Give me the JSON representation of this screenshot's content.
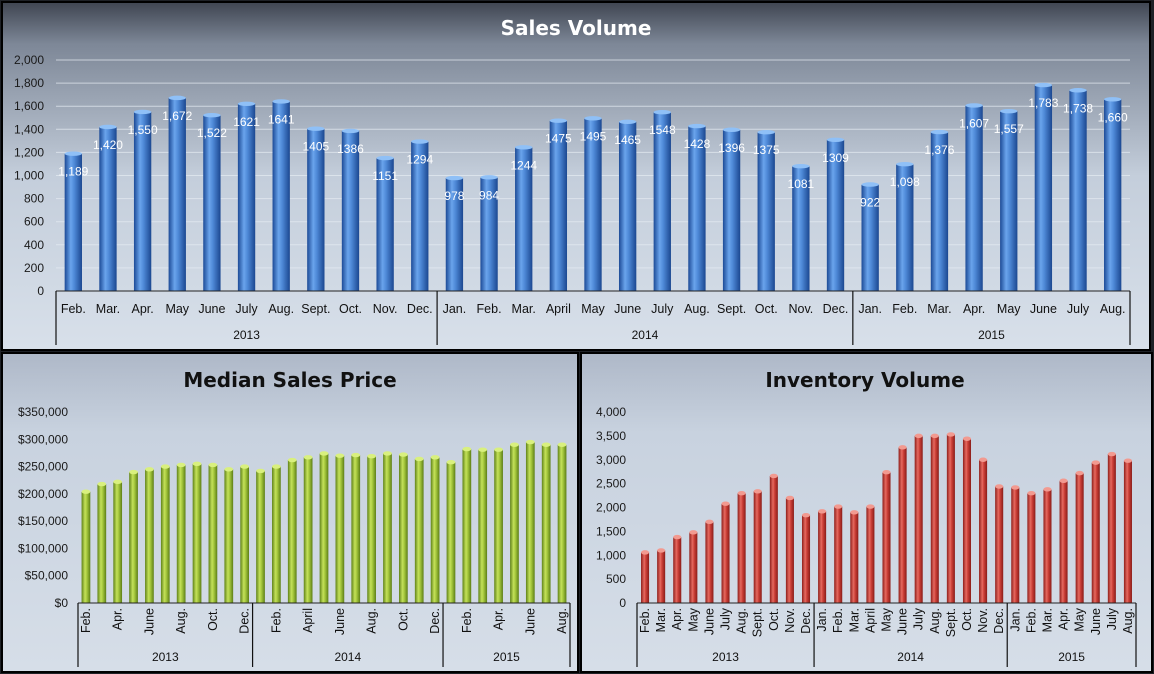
{
  "chart_data": [
    {
      "type": "bar",
      "title": "Sales Volume",
      "ylim": [
        0,
        2000
      ],
      "yticks": [
        "0",
        "200",
        "400",
        "600",
        "800",
        "1,000",
        "1,200",
        "1,400",
        "1,600",
        "1,800",
        "2,000"
      ],
      "categories": [
        "Feb.",
        "Mar.",
        "Apr.",
        "May",
        "June",
        "July",
        "Aug.",
        "Sept.",
        "Oct.",
        "Nov.",
        "Dec.",
        "Jan.",
        "Feb.",
        "Mar.",
        "April",
        "May",
        "June",
        "July",
        "Aug.",
        "Sept.",
        "Oct.",
        "Nov.",
        "Dec.",
        "Jan.",
        "Feb.",
        "Mar.",
        "Apr.",
        "May",
        "June",
        "July",
        "Aug."
      ],
      "values": [
        1189,
        1420,
        1550,
        1672,
        1522,
        1621,
        1641,
        1405,
        1386,
        1151,
        1294,
        978,
        984,
        1244,
        1475,
        1495,
        1465,
        1548,
        1428,
        1396,
        1375,
        1081,
        1309,
        922,
        1098,
        1376,
        1607,
        1557,
        1783,
        1738,
        1660
      ],
      "value_labels": [
        "1,189",
        "1,420",
        "1,550",
        "1,672",
        "1,522",
        "1621",
        "1641",
        "1405",
        "1386",
        "1151",
        "1294",
        "978",
        "984",
        "1244",
        "1475",
        "1495",
        "1465",
        "1548",
        "1428",
        "1396",
        "1375",
        "1081",
        "1309",
        "922",
        "1,098",
        "1,376",
        "1,607",
        "1,557",
        "1,783",
        "1,738",
        "1,660"
      ],
      "groups": [
        {
          "label": "2013",
          "count": 11
        },
        {
          "label": "2014",
          "count": 12
        },
        {
          "label": "2015",
          "count": 8
        }
      ]
    },
    {
      "type": "bar",
      "title": "Median Sales Price",
      "ylim": [
        0,
        350000
      ],
      "yticks": [
        "$0",
        "$50,000",
        "$100,000",
        "$150,000",
        "$200,000",
        "$250,000",
        "$300,000",
        "$350,000"
      ],
      "tick_labels": [
        "Feb.",
        "",
        "Apr.",
        "",
        "June",
        "",
        "Aug.",
        "",
        "Oct.",
        "",
        "Dec.",
        "",
        "Feb.",
        "",
        "April",
        "",
        "June",
        "",
        "Aug.",
        "",
        "Oct.",
        "",
        "Dec.",
        "",
        "Feb.",
        "",
        "Apr.",
        "",
        "June",
        "",
        "Aug."
      ],
      "values": [
        204000,
        218000,
        222000,
        240000,
        245000,
        250000,
        253000,
        255000,
        253000,
        245000,
        250000,
        242000,
        250000,
        262000,
        267000,
        274000,
        270000,
        271000,
        269000,
        274000,
        272000,
        264000,
        267000,
        258000,
        282000,
        281000,
        281000,
        290000,
        295000,
        290000,
        290000
      ],
      "groups": [
        {
          "label": "2013",
          "count": 11
        },
        {
          "label": "2014",
          "count": 12
        },
        {
          "label": "2015",
          "count": 8
        }
      ]
    },
    {
      "type": "bar",
      "title": "Inventory Volume",
      "ylim": [
        0,
        4000
      ],
      "yticks": [
        "0",
        "500",
        "1,000",
        "1,500",
        "2,000",
        "2,500",
        "3,000",
        "3,500",
        "4,000"
      ],
      "tick_labels": [
        "Feb.",
        "Mar.",
        "Apr.",
        "May",
        "June",
        "July",
        "Aug.",
        "Sept.",
        "Oct.",
        "Nov.",
        "Dec.",
        "Jan.",
        "Feb.",
        "Mar.",
        "April",
        "May",
        "June",
        "July",
        "Aug.",
        "Sept.",
        "Oct.",
        "Nov.",
        "Dec.",
        "Jan.",
        "Feb.",
        "Mar.",
        "Apr.",
        "May",
        "June",
        "July",
        "Aug."
      ],
      "values": [
        1060,
        1100,
        1380,
        1480,
        1700,
        2080,
        2300,
        2340,
        2660,
        2200,
        1840,
        1920,
        2020,
        1900,
        2020,
        2740,
        3260,
        3500,
        3500,
        3530,
        3440,
        3000,
        2440,
        2420,
        2300,
        2380,
        2560,
        2720,
        2940,
        3120,
        2980
      ],
      "groups": [
        {
          "label": "2013",
          "count": 11
        },
        {
          "label": "2014",
          "count": 12
        },
        {
          "label": "2015",
          "count": 8
        }
      ]
    }
  ],
  "colors": {
    "sales_bar": "#2f6bc4",
    "price_bar": "#8db52a",
    "inventory_bar": "#c23a33"
  }
}
